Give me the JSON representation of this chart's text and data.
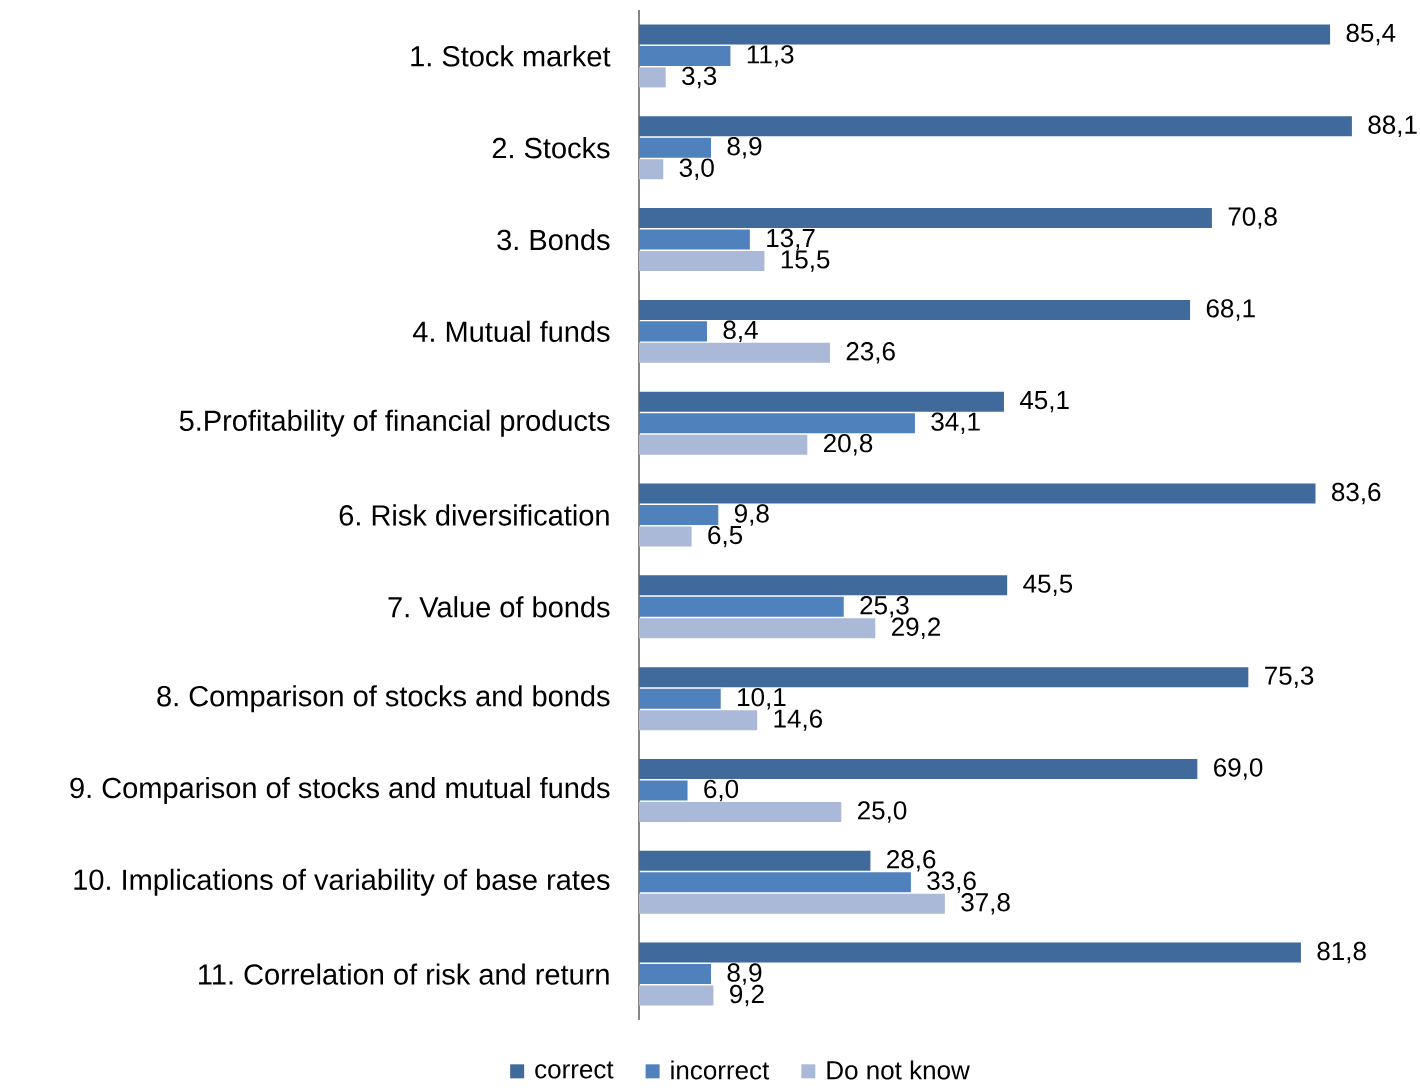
{
  "chart_data": {
    "type": "bar",
    "orientation": "horizontal",
    "categories": [
      "1. Stock market",
      "2. Stocks",
      "3. Bonds",
      "4. Mutual funds",
      "5.Profitability of financial products",
      "6. Risk diversification",
      "7. Value of bonds",
      "8. Comparison of stocks and bonds",
      "9. Comparison of stocks and mutual funds",
      "10. Implications of variability of base rates",
      "11. Correlation of risk and return"
    ],
    "series": [
      {
        "name": "correct",
        "color": "#3f6a9b",
        "values": [
          85.4,
          88.1,
          70.8,
          68.1,
          45.1,
          83.6,
          45.5,
          75.3,
          69.0,
          28.6,
          81.8
        ],
        "value_labels": [
          "85,4",
          "88,1",
          "70,8",
          "68,1",
          "45,1",
          "83,6",
          "45,5",
          "75,3",
          "69,0",
          "28,6",
          "81,8"
        ]
      },
      {
        "name": "incorrect",
        "color": "#4f81bd",
        "values": [
          11.3,
          8.9,
          13.7,
          8.4,
          34.1,
          9.8,
          25.3,
          10.1,
          6.0,
          33.6,
          8.9
        ],
        "value_labels": [
          "11,3",
          "8,9",
          "13,7",
          "8,4",
          "34,1",
          "9,8",
          "25,3",
          "10,1",
          "6,0",
          "33,6",
          "8,9"
        ]
      },
      {
        "name": "Do not know",
        "color": "#aab9d8",
        "values": [
          3.3,
          3.0,
          15.5,
          23.6,
          20.8,
          6.5,
          29.2,
          14.6,
          25.0,
          37.8,
          9.2
        ],
        "value_labels": [
          "3,3",
          "3,0",
          "15,5",
          "23,6",
          "20,8",
          "6,5",
          "29,2",
          "14,6",
          "25,0",
          "37,8",
          "9,2"
        ]
      }
    ],
    "tick_labels": "y",
    "legend": "bottom"
  }
}
